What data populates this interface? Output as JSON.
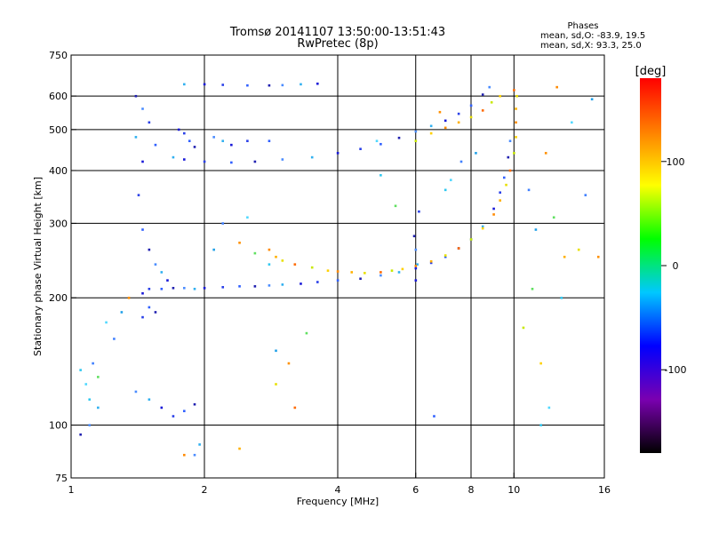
{
  "chart_data": {
    "type": "scatter",
    "title": "Tromsø 20141107 13:50:00-13:51:43",
    "subtitle": "RwPretec (8p)",
    "stats_header": "Phases",
    "stats_line_o": "mean, sd,O: -83.9, 19.5",
    "stats_line_x": "mean, sd,X: 93.3, 25.0",
    "xlabel": "Frequency [MHz]",
    "ylabel": "Stationary phase Virtual Height [km]",
    "x_scale": "log",
    "y_scale": "log",
    "xlim": [
      1,
      16
    ],
    "ylim": [
      75,
      750
    ],
    "x_ticks": [
      {
        "value": 1,
        "label": "1"
      },
      {
        "value": 2,
        "label": "2"
      },
      {
        "value": 4,
        "label": "4"
      },
      {
        "value": 6,
        "label": "6"
      },
      {
        "value": 8,
        "label": "8"
      },
      {
        "value": 10,
        "label": "10"
      },
      {
        "value": 16,
        "label": "16"
      }
    ],
    "y_ticks": [
      {
        "value": 75,
        "label": "75"
      },
      {
        "value": 100,
        "label": "100"
      },
      {
        "value": 200,
        "label": "200"
      },
      {
        "value": 300,
        "label": "300"
      },
      {
        "value": 400,
        "label": "400"
      },
      {
        "value": 500,
        "label": "500"
      },
      {
        "value": 600,
        "label": "600"
      },
      {
        "value": 750,
        "label": "750"
      }
    ],
    "x_gridlines": [
      2,
      4,
      6,
      8,
      10
    ],
    "y_gridlines": [
      100,
      200,
      300,
      400,
      500,
      600
    ],
    "grid": true,
    "colorbar": {
      "unit": "[deg]",
      "range": [
        -180,
        180
      ],
      "ticks": [
        {
          "value": 100,
          "label": "100"
        },
        {
          "value": 0,
          "label": "0"
        },
        {
          "value": -100,
          "label": "-100"
        }
      ],
      "colormap": [
        "#000000",
        "#7a00b0",
        "#0000ff",
        "#00c8ff",
        "#00ff00",
        "#ffff00",
        "#ff8000",
        "#ff0000"
      ]
    },
    "series": [
      {
        "description_role": "ordinary_O",
        "points": [
          [
            1.45,
            205
          ],
          [
            1.5,
            210
          ],
          [
            1.6,
            210
          ],
          [
            1.7,
            211
          ],
          [
            1.8,
            211
          ],
          [
            1.9,
            210
          ],
          [
            2.0,
            211
          ],
          [
            2.2,
            212
          ],
          [
            2.4,
            213
          ],
          [
            2.6,
            213
          ],
          [
            2.8,
            214
          ],
          [
            3.0,
            215
          ],
          [
            3.3,
            216
          ],
          [
            3.6,
            218
          ],
          [
            4.0,
            220
          ],
          [
            4.5,
            222
          ],
          [
            5.0,
            226
          ],
          [
            5.5,
            230
          ],
          [
            6.0,
            235
          ],
          [
            6.5,
            242
          ],
          [
            7.0,
            250
          ],
          [
            7.5,
            262
          ],
          [
            8.0,
            275
          ],
          [
            8.5,
            295
          ],
          [
            9.0,
            325
          ],
          [
            9.3,
            355
          ],
          [
            9.5,
            385
          ],
          [
            9.7,
            430
          ],
          [
            9.8,
            470
          ],
          [
            1.4,
            480
          ],
          [
            1.45,
            420
          ],
          [
            1.42,
            350
          ],
          [
            1.45,
            290
          ],
          [
            1.5,
            260
          ],
          [
            1.55,
            240
          ],
          [
            1.6,
            230
          ],
          [
            1.65,
            220
          ],
          [
            1.5,
            520
          ],
          [
            1.55,
            460
          ],
          [
            1.4,
            600
          ],
          [
            1.45,
            560
          ],
          [
            1.7,
            430
          ],
          [
            1.8,
            425
          ],
          [
            2.0,
            420
          ],
          [
            2.3,
            418
          ],
          [
            2.6,
            420
          ],
          [
            3.0,
            425
          ],
          [
            3.5,
            430
          ],
          [
            4.0,
            440
          ],
          [
            4.5,
            450
          ],
          [
            5.0,
            462
          ],
          [
            5.5,
            478
          ],
          [
            6.0,
            495
          ],
          [
            6.5,
            510
          ],
          [
            7.0,
            525
          ],
          [
            7.5,
            545
          ],
          [
            8.0,
            570
          ],
          [
            8.5,
            605
          ],
          [
            8.8,
            630
          ],
          [
            1.8,
            640
          ],
          [
            2.0,
            640
          ],
          [
            2.2,
            638
          ],
          [
            2.5,
            636
          ],
          [
            2.8,
            636
          ],
          [
            3.0,
            637
          ],
          [
            3.3,
            640
          ],
          [
            3.6,
            642
          ],
          [
            1.45,
            180
          ],
          [
            1.5,
            190
          ],
          [
            1.55,
            185
          ],
          [
            1.4,
            120
          ],
          [
            1.5,
            115
          ],
          [
            1.6,
            110
          ],
          [
            1.7,
            105
          ],
          [
            1.8,
            108
          ],
          [
            1.9,
            112
          ],
          [
            1.9,
            85
          ],
          [
            1.95,
            90
          ],
          [
            1.75,
            500
          ],
          [
            1.8,
            490
          ],
          [
            1.85,
            470
          ],
          [
            1.9,
            455
          ],
          [
            2.1,
            480
          ],
          [
            2.2,
            470
          ],
          [
            2.3,
            460
          ],
          [
            2.5,
            470
          ],
          [
            2.8,
            470
          ],
          [
            5.95,
            280
          ],
          [
            6.0,
            260
          ],
          [
            6.05,
            240
          ],
          [
            6.0,
            220
          ],
          [
            6.1,
            320
          ],
          [
            6.6,
            105
          ],
          [
            1.05,
            95
          ],
          [
            1.1,
            100
          ],
          [
            1.15,
            110
          ]
        ]
      },
      {
        "description_role": "extraordinary_X",
        "points": [
          [
            2.8,
            260
          ],
          [
            2.9,
            250
          ],
          [
            3.0,
            245
          ],
          [
            3.2,
            240
          ],
          [
            3.5,
            236
          ],
          [
            3.8,
            232
          ],
          [
            4.0,
            231
          ],
          [
            4.3,
            230
          ],
          [
            4.6,
            229
          ],
          [
            5.0,
            230
          ],
          [
            5.3,
            232
          ],
          [
            5.6,
            234
          ],
          [
            6.0,
            238
          ],
          [
            6.5,
            244
          ],
          [
            7.0,
            252
          ],
          [
            7.5,
            262
          ],
          [
            8.0,
            275
          ],
          [
            8.5,
            292
          ],
          [
            9.0,
            315
          ],
          [
            9.3,
            340
          ],
          [
            9.6,
            370
          ],
          [
            9.8,
            400
          ],
          [
            10.0,
            440
          ],
          [
            10.1,
            480
          ],
          [
            10.1,
            520
          ],
          [
            10.1,
            560
          ],
          [
            10.15,
            600
          ],
          [
            10.0,
            620
          ],
          [
            6.0,
            470
          ],
          [
            6.5,
            490
          ],
          [
            7.0,
            505
          ],
          [
            7.5,
            520
          ],
          [
            8.0,
            535
          ],
          [
            8.5,
            555
          ],
          [
            8.9,
            580
          ],
          [
            9.3,
            600
          ],
          [
            1.8,
            85
          ],
          [
            2.4,
            88
          ],
          [
            2.9,
            125
          ],
          [
            3.2,
            110
          ],
          [
            10.5,
            170
          ],
          [
            11.5,
            140
          ],
          [
            12.5,
            630
          ],
          [
            13.0,
            250
          ],
          [
            14.0,
            260
          ]
        ]
      },
      {
        "description_role": "scattered",
        "points": [
          [
            1.1,
            115
          ],
          [
            1.2,
            175
          ],
          [
            1.25,
            160
          ],
          [
            1.3,
            185
          ],
          [
            1.35,
            200
          ],
          [
            1.15,
            130
          ],
          [
            1.05,
            135
          ],
          [
            1.08,
            125
          ],
          [
            1.12,
            140
          ],
          [
            2.1,
            260
          ],
          [
            2.4,
            270
          ],
          [
            2.6,
            255
          ],
          [
            2.8,
            240
          ],
          [
            2.5,
            310
          ],
          [
            2.2,
            300
          ],
          [
            2.9,
            150
          ],
          [
            3.1,
            140
          ],
          [
            3.4,
            165
          ],
          [
            7.0,
            360
          ],
          [
            7.2,
            380
          ],
          [
            7.6,
            420
          ],
          [
            8.2,
            440
          ],
          [
            6.8,
            550
          ],
          [
            5.4,
            330
          ],
          [
            5.0,
            390
          ],
          [
            4.9,
            470
          ],
          [
            10.8,
            360
          ],
          [
            11.2,
            290
          ],
          [
            11.8,
            440
          ],
          [
            12.3,
            310
          ],
          [
            12.8,
            200
          ],
          [
            13.5,
            520
          ],
          [
            14.5,
            350
          ],
          [
            15.0,
            590
          ],
          [
            15.5,
            250
          ],
          [
            11.0,
            210
          ],
          [
            11.5,
            100
          ],
          [
            12.0,
            110
          ]
        ]
      }
    ]
  }
}
